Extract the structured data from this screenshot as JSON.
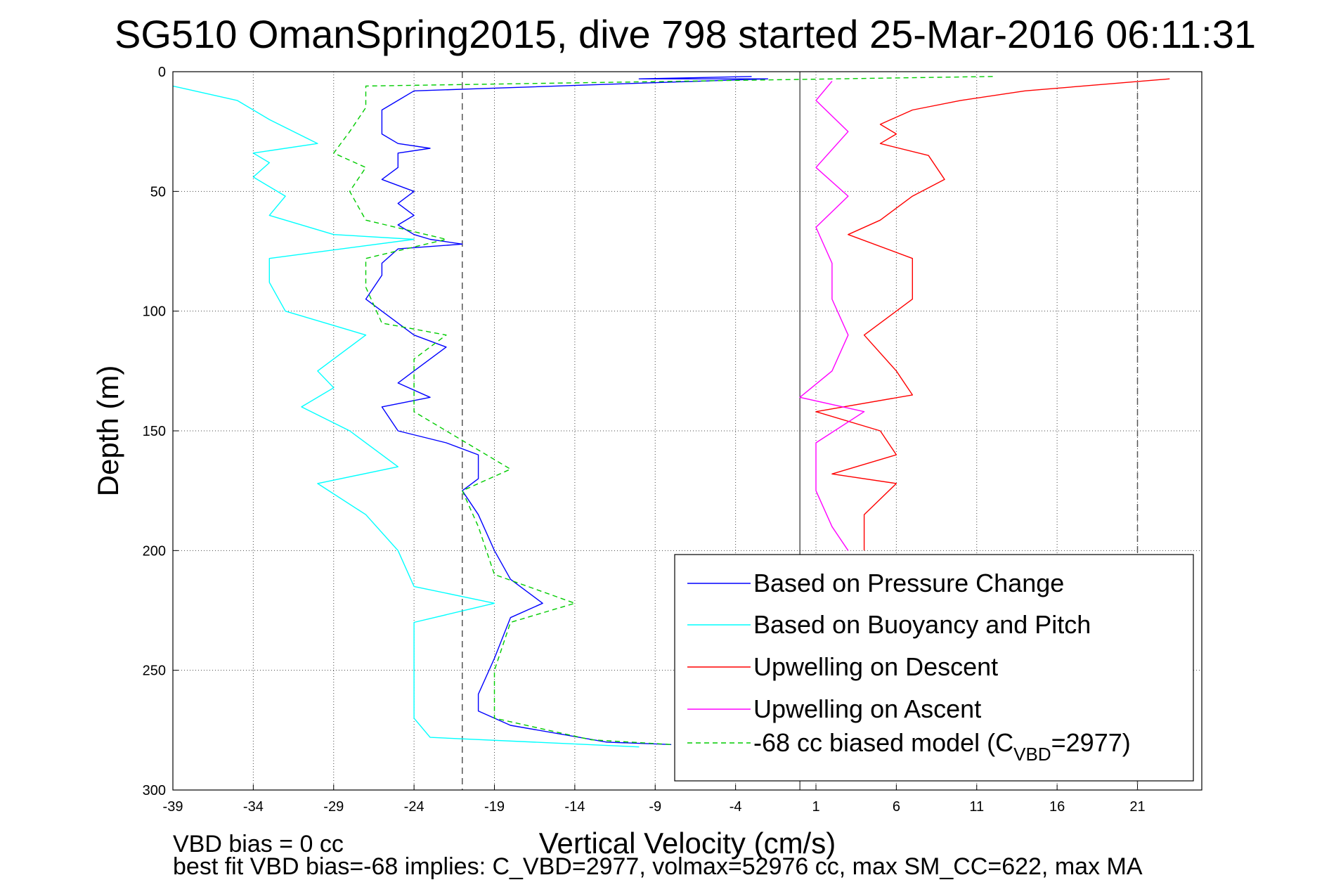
{
  "chart_data": {
    "type": "line",
    "title": "SG510 OmanSpring2015, dive 798 started 25-Mar-2016 06:11:31",
    "xlabel": "Vertical Velocity (cm/s)",
    "ylabel": "Depth (m)",
    "xlim": [
      -39,
      25
    ],
    "ylim": [
      0,
      300
    ],
    "y_reversed": true,
    "grid": true,
    "legend_position": "bottom-right",
    "x_ticks": [
      -39,
      -34,
      -29,
      -24,
      -19,
      -14,
      -9,
      -4,
      1,
      6,
      11,
      16,
      21
    ],
    "y_ticks": [
      0,
      50,
      100,
      150,
      200,
      250,
      300
    ],
    "reference_lines": {
      "dashed_x": [
        -21,
        21
      ],
      "solid_x": [
        0
      ]
    },
    "series": [
      {
        "name": "Based on Pressure Change",
        "color": "#0000ff",
        "dash": "solid",
        "points": [
          [
            -3,
            2
          ],
          [
            -10,
            3
          ],
          [
            -2,
            3
          ],
          [
            -24,
            8
          ],
          [
            -25,
            12
          ],
          [
            -26,
            16
          ],
          [
            -26,
            22
          ],
          [
            -26,
            26
          ],
          [
            -25,
            30
          ],
          [
            -23,
            32
          ],
          [
            -25,
            34
          ],
          [
            -25,
            40
          ],
          [
            -26,
            45
          ],
          [
            -24,
            50
          ],
          [
            -25,
            55
          ],
          [
            -24,
            60
          ],
          [
            -25,
            64
          ],
          [
            -24,
            68
          ],
          [
            -23,
            70
          ],
          [
            -21,
            72
          ],
          [
            -25,
            74
          ],
          [
            -26,
            80
          ],
          [
            -26,
            85
          ],
          [
            -27,
            95
          ],
          [
            -26,
            100
          ],
          [
            -24,
            110
          ],
          [
            -22,
            115
          ],
          [
            -24,
            125
          ],
          [
            -25,
            130
          ],
          [
            -23,
            136
          ],
          [
            -26,
            140
          ],
          [
            -25,
            150
          ],
          [
            -22,
            155
          ],
          [
            -20,
            160
          ],
          [
            -20,
            170
          ],
          [
            -21,
            175
          ],
          [
            -20,
            185
          ],
          [
            -19,
            200
          ],
          [
            -18,
            212
          ],
          [
            -16,
            222
          ],
          [
            -18,
            228
          ],
          [
            -19,
            245
          ],
          [
            -20,
            260
          ],
          [
            -20,
            267
          ],
          [
            -18,
            273
          ],
          [
            -12,
            280
          ],
          [
            -8,
            281
          ]
        ]
      },
      {
        "name": "Based on Buoyancy and Pitch",
        "color": "#00ffff",
        "dash": "solid",
        "points": [
          [
            -39,
            6
          ],
          [
            -35,
            12
          ],
          [
            -33,
            20
          ],
          [
            -30,
            30
          ],
          [
            -34,
            34
          ],
          [
            -33,
            38
          ],
          [
            -34,
            44
          ],
          [
            -32,
            52
          ],
          [
            -33,
            60
          ],
          [
            -29,
            68
          ],
          [
            -24,
            70
          ],
          [
            -33,
            78
          ],
          [
            -33,
            88
          ],
          [
            -32,
            100
          ],
          [
            -27,
            110
          ],
          [
            -30,
            125
          ],
          [
            -29,
            132
          ],
          [
            -31,
            140
          ],
          [
            -28,
            150
          ],
          [
            -25,
            165
          ],
          [
            -30,
            172
          ],
          [
            -27,
            185
          ],
          [
            -25,
            200
          ],
          [
            -24,
            215
          ],
          [
            -19,
            222
          ],
          [
            -24,
            230
          ],
          [
            -24,
            250
          ],
          [
            -24,
            270
          ],
          [
            -23,
            278
          ],
          [
            -10,
            282
          ]
        ]
      },
      {
        "name": "Upwelling on Descent",
        "color": "#ff0000",
        "dash": "solid",
        "points": [
          [
            23,
            3
          ],
          [
            14,
            8
          ],
          [
            10,
            12
          ],
          [
            7,
            16
          ],
          [
            5,
            22
          ],
          [
            6,
            26
          ],
          [
            5,
            30
          ],
          [
            8,
            35
          ],
          [
            9,
            45
          ],
          [
            7,
            52
          ],
          [
            5,
            62
          ],
          [
            3,
            68
          ],
          [
            7,
            78
          ],
          [
            7,
            95
          ],
          [
            4,
            110
          ],
          [
            6,
            125
          ],
          [
            7,
            135
          ],
          [
            1,
            142
          ],
          [
            5,
            150
          ],
          [
            6,
            160
          ],
          [
            2,
            168
          ],
          [
            6,
            172
          ],
          [
            4,
            185
          ],
          [
            4,
            200
          ]
        ]
      },
      {
        "name": "Upwelling on Ascent",
        "color": "#ff00ff",
        "dash": "solid",
        "points": [
          [
            2,
            4
          ],
          [
            1,
            12
          ],
          [
            3,
            25
          ],
          [
            1,
            40
          ],
          [
            3,
            52
          ],
          [
            1,
            65
          ],
          [
            2,
            80
          ],
          [
            2,
            95
          ],
          [
            3,
            110
          ],
          [
            2,
            125
          ],
          [
            0,
            136
          ],
          [
            4,
            142
          ],
          [
            1,
            155
          ],
          [
            1,
            175
          ],
          [
            2,
            190
          ],
          [
            3,
            200
          ]
        ]
      },
      {
        "name": "-68 cc biased model (C_VBD=2977)",
        "color": "#00cc00",
        "dash": "dashed",
        "points": [
          [
            12,
            2
          ],
          [
            -27,
            6
          ],
          [
            -27,
            15
          ],
          [
            -28,
            25
          ],
          [
            -29,
            34
          ],
          [
            -27,
            40
          ],
          [
            -28,
            50
          ],
          [
            -27,
            62
          ],
          [
            -22,
            70
          ],
          [
            -27,
            78
          ],
          [
            -27,
            90
          ],
          [
            -26,
            105
          ],
          [
            -22,
            110
          ],
          [
            -24,
            120
          ],
          [
            -24,
            136
          ],
          [
            -24,
            142
          ],
          [
            -22,
            150
          ],
          [
            -18,
            166
          ],
          [
            -21,
            175
          ],
          [
            -20,
            190
          ],
          [
            -19,
            210
          ],
          [
            -14,
            222
          ],
          [
            -18,
            230
          ],
          [
            -19,
            250
          ],
          [
            -19,
            270
          ],
          [
            -13,
            279
          ],
          [
            -8,
            281
          ]
        ]
      }
    ]
  },
  "legend": {
    "items": [
      {
        "text": "Based on Pressure Change"
      },
      {
        "text": "Based on Buoyancy and Pitch"
      },
      {
        "text": "Upwelling on Descent"
      },
      {
        "text": "Upwelling on Ascent"
      },
      {
        "prefix": "-68 cc biased model (C",
        "sub": "VBD",
        "suffix": "=2977)"
      }
    ]
  },
  "footer": {
    "line1": "VBD bias = 0 cc",
    "line2": "best fit VBD bias=-68 implies: C_VBD=2977, volmax=52976 cc, max SM_CC=622, max MA"
  }
}
